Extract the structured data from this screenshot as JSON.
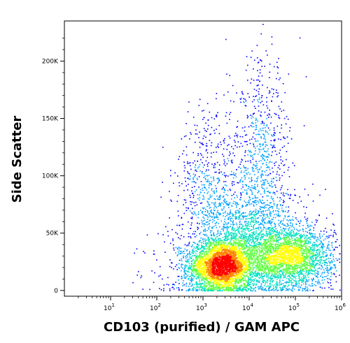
{
  "chart_data": {
    "type": "scatter",
    "subtype": "flow-cytometry-density-dot-plot",
    "xlabel": "CD103 (purified) / GAM APC",
    "ylabel": "Side Scatter",
    "x_scale": "log",
    "xlim": [
      1,
      1000000
    ],
    "ylim": [
      -5000,
      235000
    ],
    "x_ticks": [
      {
        "value": 10,
        "base": "10",
        "exp": "1"
      },
      {
        "value": 100,
        "base": "10",
        "exp": "2"
      },
      {
        "value": 1000,
        "base": "10",
        "exp": "3"
      },
      {
        "value": 10000,
        "base": "10",
        "exp": "4"
      },
      {
        "value": 100000,
        "base": "10",
        "exp": "5"
      },
      {
        "value": 1000000,
        "base": "10",
        "exp": "6"
      }
    ],
    "y_ticks": [
      {
        "value": 0,
        "label": "0"
      },
      {
        "value": 50000,
        "label": "50K"
      },
      {
        "value": 100000,
        "label": "100K"
      },
      {
        "value": 150000,
        "label": "150K"
      },
      {
        "value": 200000,
        "label": "200K"
      }
    ],
    "grid": false,
    "legend": "none",
    "color_scale": [
      "#0000ff",
      "#00a0ff",
      "#00e0c0",
      "#60ff40",
      "#ffff00",
      "#ff8000",
      "#ff0000"
    ],
    "populations": [
      {
        "x_center": 2500,
        "y_center": 22000,
        "x_spread_decades": 0.35,
        "y_spread": 11000,
        "weight": 0.36
      },
      {
        "x_center": 80000,
        "y_center": 30000,
        "x_spread_decades": 0.45,
        "y_spread": 13000,
        "weight": 0.26
      },
      {
        "x_center": 12000,
        "y_center": 40000,
        "x_spread_decades": 0.55,
        "y_spread": 25000,
        "weight": 0.18
      },
      {
        "x_center": 1500,
        "y_center": 80000,
        "x_spread_decades": 0.4,
        "y_spread": 40000,
        "weight": 0.08
      },
      {
        "x_center": 18000,
        "y_center": 110000,
        "x_spread_decades": 0.3,
        "y_spread": 45000,
        "weight": 0.08
      },
      {
        "x_center": 2000,
        "y_center": 20000,
        "x_spread_decades": 0.8,
        "y_spread": 20000,
        "weight": 0.04
      }
    ]
  }
}
